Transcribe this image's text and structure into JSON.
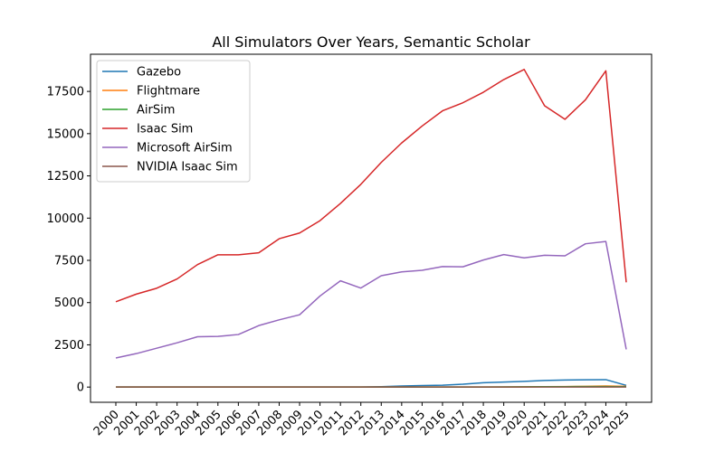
{
  "chart_data": {
    "type": "line",
    "title": "All Simulators Over Years, Semantic Scholar",
    "xlabel": "",
    "ylabel": "",
    "categories": [
      "2000",
      "2001",
      "2002",
      "2003",
      "2004",
      "2005",
      "2006",
      "2007",
      "2008",
      "2009",
      "2010",
      "2011",
      "2012",
      "2013",
      "2014",
      "2015",
      "2016",
      "2017",
      "2018",
      "2019",
      "2020",
      "2021",
      "2022",
      "2023",
      "2024",
      "2025"
    ],
    "yticks": [
      0,
      2500,
      5000,
      7500,
      10000,
      12500,
      15000,
      17500
    ],
    "ytick_labels": [
      "0",
      "2500",
      "5000",
      "7500",
      "10000",
      "12500",
      "15000",
      "17500"
    ],
    "ylim": [
      -900,
      19700
    ],
    "grid": false,
    "legend_position": "top-left",
    "series": [
      {
        "name": "Gazebo",
        "color": "#1f77b4",
        "values": [
          0,
          0,
          0,
          0,
          0,
          0,
          0,
          0,
          0,
          0,
          0,
          0,
          5,
          20,
          60,
          90,
          110,
          170,
          260,
          300,
          340,
          390,
          420,
          430,
          440,
          100
        ]
      },
      {
        "name": "Flightmare",
        "color": "#ff7f0e",
        "values": [
          0,
          0,
          0,
          0,
          0,
          0,
          0,
          0,
          0,
          0,
          0,
          0,
          0,
          0,
          0,
          0,
          0,
          0,
          0,
          0,
          10,
          20,
          30,
          40,
          60,
          40
        ]
      },
      {
        "name": "AirSim",
        "color": "#2ca02c",
        "values": [
          0,
          0,
          0,
          0,
          0,
          0,
          0,
          0,
          0,
          0,
          0,
          0,
          0,
          0,
          0,
          0,
          0,
          0,
          5,
          10,
          15,
          20,
          25,
          30,
          30,
          20
        ]
      },
      {
        "name": "Isaac Sim",
        "color": "#d62728",
        "values": [
          5050,
          5500,
          5850,
          6400,
          7250,
          7830,
          7830,
          7950,
          8780,
          9120,
          9850,
          10870,
          12000,
          13300,
          14450,
          15450,
          16350,
          16830,
          17450,
          18200,
          18800,
          16650,
          15850,
          17000,
          18720,
          6200
        ]
      },
      {
        "name": "Microsoft AirSim",
        "color": "#9467bd",
        "values": [
          1720,
          1980,
          2300,
          2620,
          2980,
          3000,
          3110,
          3640,
          3980,
          4280,
          5390,
          6290,
          5860,
          6590,
          6820,
          6910,
          7130,
          7120,
          7520,
          7840,
          7650,
          7800,
          7770,
          8480,
          8620,
          2230
        ]
      },
      {
        "name": "NVIDIA Isaac Sim",
        "color": "#8c564b",
        "values": [
          0,
          0,
          0,
          0,
          0,
          0,
          0,
          0,
          0,
          0,
          0,
          0,
          0,
          0,
          0,
          0,
          0,
          0,
          0,
          0,
          0,
          0,
          0,
          0,
          0,
          0
        ]
      }
    ]
  }
}
